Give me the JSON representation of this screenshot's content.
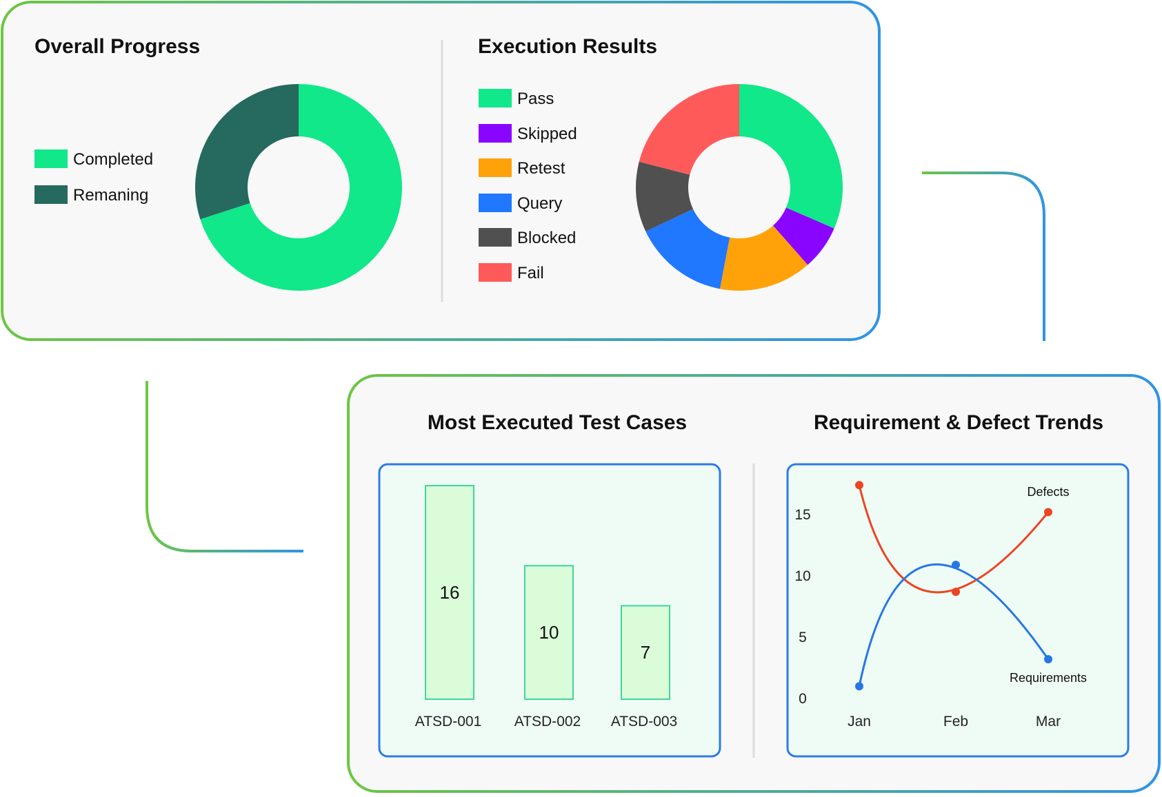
{
  "colors": {
    "card_bg": "#f8f8f8",
    "border_green": "#6cc644",
    "border_blue": "#2f93e6",
    "inner_bg": "#effcf6",
    "inner_border": "#2b7be6"
  },
  "overall_progress": {
    "title": "Overall Progress",
    "legend": [
      {
        "label": "Completed",
        "color": "#10e88a"
      },
      {
        "label": "Remaning",
        "color": "#26695e"
      }
    ]
  },
  "execution_results": {
    "title": "Execution Results",
    "legend": [
      {
        "label": "Pass",
        "color": "#10e88a"
      },
      {
        "label": "Skipped",
        "color": "#8a05ff"
      },
      {
        "label": "Retest",
        "color": "#ffa20a"
      },
      {
        "label": "Query",
        "color": "#1f78ff"
      },
      {
        "label": "Blocked",
        "color": "#505050"
      },
      {
        "label": "Fail",
        "color": "#ff5a5a"
      }
    ]
  },
  "most_executed": {
    "title": "Most Executed Test Cases"
  },
  "trends": {
    "title": "Requirement & Defect Trends"
  },
  "chart_data": [
    {
      "type": "pie",
      "title": "Overall Progress",
      "labels": [
        "Completed",
        "Remaning"
      ],
      "values": [
        70,
        30
      ],
      "colors": [
        "#10e88a",
        "#26695e"
      ]
    },
    {
      "type": "pie",
      "title": "Execution Results",
      "labels": [
        "Pass",
        "Skipped",
        "Retest",
        "Query",
        "Blocked",
        "Fail"
      ],
      "values": [
        31.5,
        7,
        14.5,
        15,
        11,
        21
      ],
      "colors": [
        "#10e88a",
        "#8a05ff",
        "#ffa20a",
        "#1f78ff",
        "#505050",
        "#ff5a5a"
      ]
    },
    {
      "type": "bar",
      "title": "Most Executed Test Cases",
      "categories": [
        "ATSD-001",
        "ATSD-002",
        "ATSD-003"
      ],
      "values": [
        16,
        10,
        7
      ],
      "bar_fill": "#dbfcd9",
      "bar_stroke": "#3ed69b"
    },
    {
      "type": "line",
      "title": "Requirement & Defect Trends",
      "categories": [
        "Jan",
        "Feb",
        "Mar"
      ],
      "y_ticks": [
        0,
        5,
        10,
        15
      ],
      "ylim": [
        0,
        17
      ],
      "series": [
        {
          "name": "Defects",
          "values": [
            17.4,
            8.7,
            15.2
          ],
          "color": "#ee4422"
        },
        {
          "name": "Requirements",
          "values": [
            1,
            10.9,
            3.2
          ],
          "color": "#2577e6"
        }
      ]
    }
  ]
}
